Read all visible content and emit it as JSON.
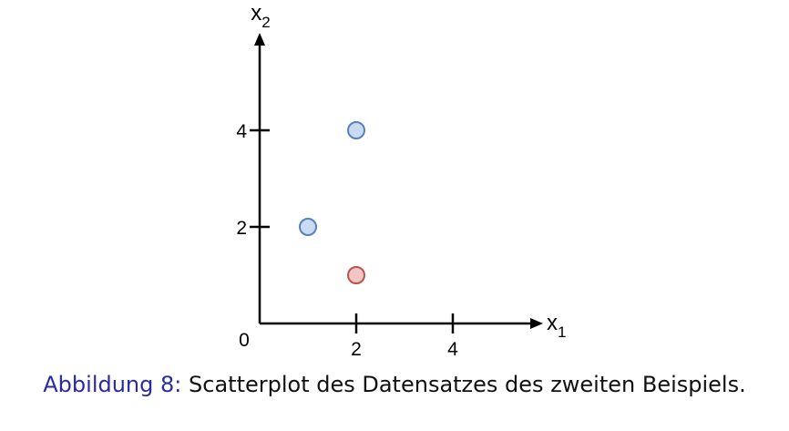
{
  "chart_data": {
    "type": "scatter",
    "title": "",
    "xlabel": {
      "base": "x",
      "sub": "1"
    },
    "ylabel": {
      "base": "x",
      "sub": "2"
    },
    "origin_label": "0",
    "xticks": [
      {
        "value": 2,
        "label": "2"
      },
      {
        "value": 4,
        "label": "4"
      }
    ],
    "yticks": [
      {
        "value": 2,
        "label": "2"
      },
      {
        "value": 4,
        "label": "4"
      }
    ],
    "points": [
      {
        "x": 2,
        "y": 4,
        "class": "blue"
      },
      {
        "x": 1,
        "y": 2,
        "class": "blue"
      },
      {
        "x": 2,
        "y": 1,
        "class": "red"
      }
    ],
    "colors": {
      "blue": {
        "fill": "#c9dbf3",
        "stroke": "#5b7fb9"
      },
      "red": {
        "fill": "#f3c5c5",
        "stroke": "#b85450"
      }
    },
    "grid": false,
    "legend": "none"
  },
  "caption": {
    "label": "Abbildung 8:",
    "text": "Scatterplot des Datensatzes des zweiten Beispiels."
  }
}
